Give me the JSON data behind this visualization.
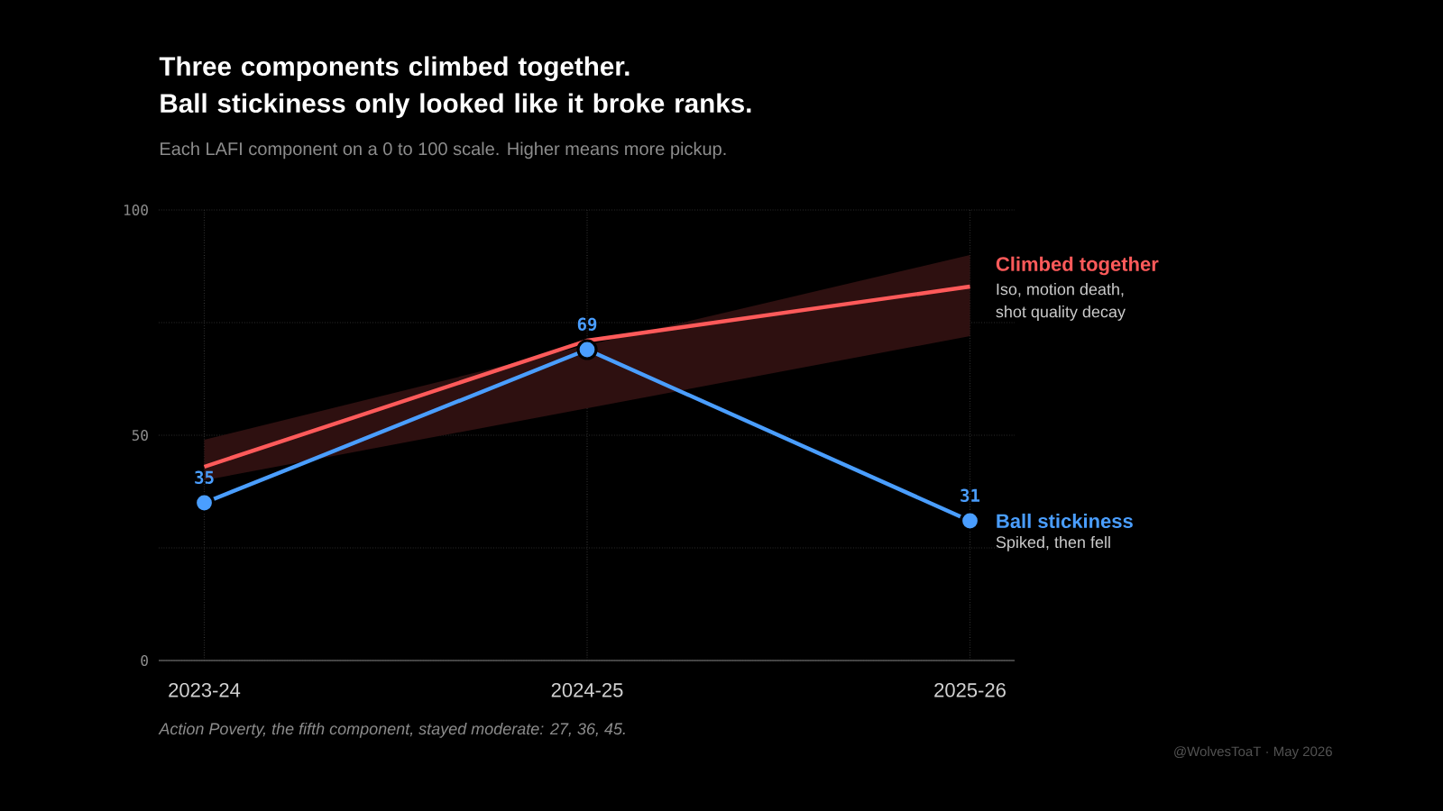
{
  "chart_data": {
    "type": "line",
    "title": "Three components climbed together. Ball stickiness only looked like it broke ranks.",
    "subtitle": "Each LAFI component on a 0 to 100 scale. Higher means more pickup.",
    "categories": [
      "2023-24",
      "2024-25",
      "2025-26"
    ],
    "ylim": [
      0,
      100
    ],
    "yticks": [
      0,
      {
        "value": 25,
        "label": null
      },
      50,
      {
        "value": 75,
        "label": null
      },
      100
    ],
    "grid": true,
    "legend": false,
    "line_style": "solid",
    "series": [
      {
        "name": "Climbed together",
        "color": "#ff5a5a",
        "values": [
          43,
          71,
          83
        ],
        "lower": [
          40,
          56,
          72
        ],
        "upper": [
          49,
          70,
          90
        ]
      },
      {
        "name": "Ball stickiness",
        "color": "#4a9eff",
        "values": [
          35,
          69,
          31
        ],
        "marker": "circle",
        "value_labels": [
          "35",
          "69",
          "31"
        ]
      }
    ],
    "annotations": [
      "Iso, motion death, shot quality decay",
      "Spiked, then fell",
      "Action Poverty, the fifth component, stayed moderate: 27, 36, 45.",
      "@WolvesToaT · May 2026"
    ]
  }
}
